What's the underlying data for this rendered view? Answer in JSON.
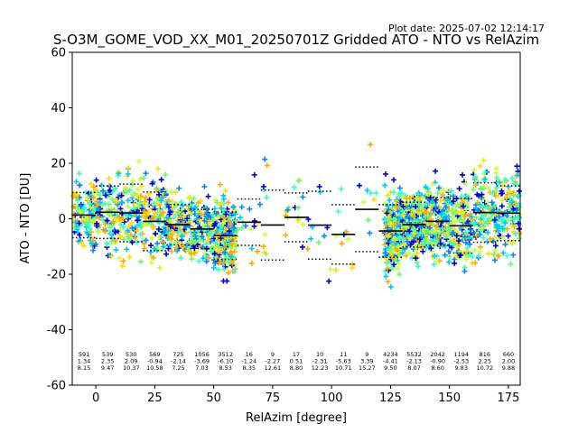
{
  "chart_data": {
    "type": "scatter",
    "title": "S-O3M_GOME_VOD_XX_M01_20250701Z Gridded ATO - NTO vs RelAzim",
    "plot_date": "Plot date: 2025-07-02 12:14:17",
    "xlabel": "RelAzim [degree]",
    "ylabel": "ATO - NTO [DU]",
    "xlim": [
      -10,
      180
    ],
    "ylim": [
      -60,
      60
    ],
    "xticks": [
      0,
      25,
      50,
      75,
      100,
      125,
      150,
      175
    ],
    "yticks": [
      -60,
      -40,
      -20,
      0,
      20,
      40,
      60
    ],
    "grid": false,
    "marker": "+",
    "colors": [
      "#0000dd",
      "#0088ff",
      "#00c8ff",
      "#33ffcc",
      "#66ff66",
      "#ccff33",
      "#ffdd00",
      "#ffaa00"
    ],
    "bins": [
      {
        "center": -5,
        "count": "591",
        "mean": "1.34",
        "std": "8.15"
      },
      {
        "center": 5,
        "count": "539",
        "mean": "2.35",
        "std": "9.47"
      },
      {
        "center": 15,
        "count": "530",
        "mean": "2.09",
        "std": "10.37"
      },
      {
        "center": 25,
        "count": "569",
        "mean": "-0.94",
        "std": "10.58"
      },
      {
        "center": 35,
        "count": "725",
        "mean": "-2.14",
        "std": "7.25"
      },
      {
        "center": 45,
        "count": "1056",
        "mean": "-3.69",
        "std": "7.03"
      },
      {
        "center": 55,
        "count": "3512",
        "mean": "-6.10",
        "std": "8.53"
      },
      {
        "center": 65,
        "count": "16",
        "mean": "-1.24",
        "std": "8.35"
      },
      {
        "center": 75,
        "count": "9",
        "mean": "-2.27",
        "std": "12.61"
      },
      {
        "center": 85,
        "count": "17",
        "mean": "0.51",
        "std": "8.80"
      },
      {
        "center": 95,
        "count": "10",
        "mean": "-2.31",
        "std": "12.23"
      },
      {
        "center": 105,
        "count": "11",
        "mean": "-5.63",
        "std": "10.71"
      },
      {
        "center": 115,
        "count": "9",
        "mean": "3.39",
        "std": "15.27"
      },
      {
        "center": 125,
        "count": "4234",
        "mean": "-4.41",
        "std": "9.50"
      },
      {
        "center": 135,
        "count": "5532",
        "mean": "-2.13",
        "std": "8.07"
      },
      {
        "center": 145,
        "count": "2042",
        "mean": "-0.90",
        "std": "8.60"
      },
      {
        "center": 155,
        "count": "1194",
        "mean": "-2.53",
        "std": "9.83"
      },
      {
        "center": 165,
        "count": "816",
        "mean": "2.25",
        "std": "10.72"
      },
      {
        "center": 175,
        "count": "660",
        "mean": "2.00",
        "std": "9.88"
      }
    ]
  }
}
